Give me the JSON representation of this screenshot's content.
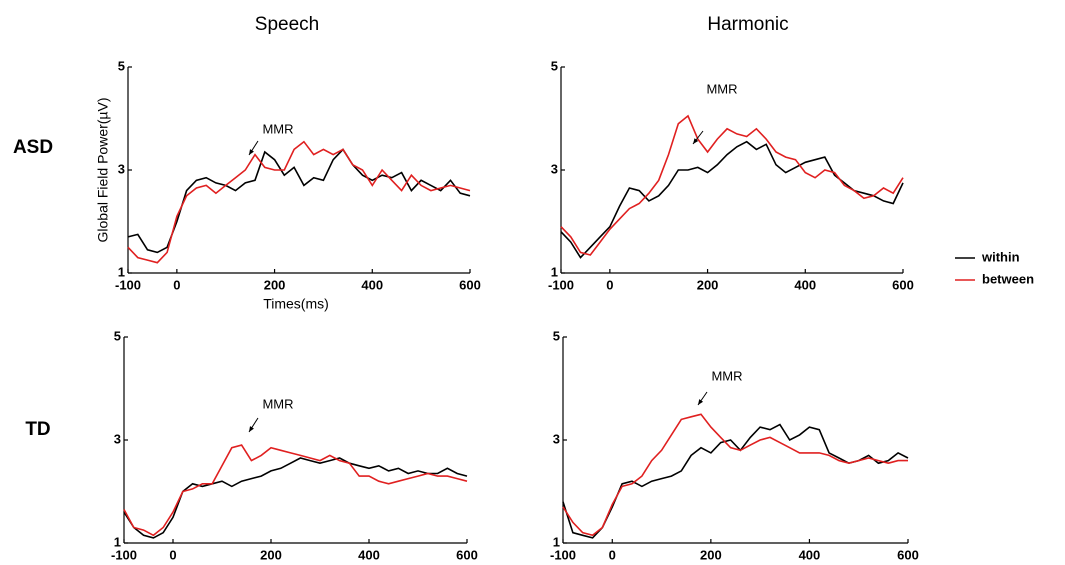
{
  "column_titles": [
    "Speech",
    "Harmonic"
  ],
  "row_labels": [
    "ASD",
    "TD"
  ],
  "chart_data": [
    {
      "type": "line",
      "annotation": "MMR",
      "ylabel": "Global Field Power(µV)",
      "xlabel": "Times(ms)",
      "xlim": [
        -100,
        600
      ],
      "ylim": [
        1,
        5
      ],
      "xticks": [
        -100,
        0,
        200,
        400,
        600
      ],
      "yticks": [
        1,
        3,
        5
      ],
      "x": [
        -100,
        -80,
        -60,
        -40,
        -20,
        0,
        20,
        40,
        60,
        80,
        100,
        120,
        140,
        160,
        180,
        200,
        220,
        240,
        260,
        280,
        300,
        320,
        340,
        360,
        380,
        400,
        420,
        440,
        460,
        480,
        500,
        520,
        540,
        560,
        580,
        600
      ],
      "series": [
        {
          "name": "within",
          "color": "#000000",
          "values": [
            1.7,
            1.75,
            1.45,
            1.4,
            1.5,
            2.0,
            2.6,
            2.8,
            2.85,
            2.75,
            2.7,
            2.6,
            2.75,
            2.8,
            3.35,
            3.2,
            2.9,
            3.05,
            2.7,
            2.85,
            2.8,
            3.2,
            3.4,
            3.1,
            2.9,
            2.8,
            2.9,
            2.85,
            2.95,
            2.6,
            2.8,
            2.7,
            2.6,
            2.8,
            2.55,
            2.5
          ]
        },
        {
          "name": "between",
          "color": "#e02020",
          "values": [
            1.5,
            1.3,
            1.25,
            1.2,
            1.4,
            2.1,
            2.5,
            2.65,
            2.7,
            2.55,
            2.7,
            2.85,
            3.0,
            3.3,
            3.05,
            3.0,
            3.0,
            3.4,
            3.55,
            3.3,
            3.4,
            3.3,
            3.4,
            3.1,
            3.0,
            2.7,
            3.0,
            2.8,
            2.6,
            2.9,
            2.7,
            2.6,
            2.65,
            2.7,
            2.65,
            2.6
          ]
        }
      ]
    },
    {
      "type": "line",
      "annotation": "MMR",
      "xlim": [
        -100,
        600
      ],
      "ylim": [
        1,
        5
      ],
      "xticks": [
        -100,
        0,
        200,
        400,
        600
      ],
      "yticks": [
        1,
        3,
        5
      ],
      "x": [
        -100,
        -80,
        -60,
        -40,
        -20,
        0,
        20,
        40,
        60,
        80,
        100,
        120,
        140,
        160,
        180,
        200,
        220,
        240,
        260,
        280,
        300,
        320,
        340,
        360,
        380,
        400,
        420,
        440,
        460,
        480,
        500,
        520,
        540,
        560,
        580,
        600
      ],
      "series": [
        {
          "name": "within",
          "color": "#000000",
          "values": [
            1.8,
            1.6,
            1.3,
            1.5,
            1.7,
            1.9,
            2.3,
            2.65,
            2.6,
            2.4,
            2.5,
            2.7,
            3.0,
            3.0,
            3.05,
            2.95,
            3.1,
            3.3,
            3.45,
            3.55,
            3.4,
            3.5,
            3.1,
            2.95,
            3.05,
            3.15,
            3.2,
            3.25,
            2.9,
            2.75,
            2.6,
            2.55,
            2.5,
            2.4,
            2.35,
            2.75
          ]
        },
        {
          "name": "between",
          "color": "#e02020",
          "values": [
            1.9,
            1.7,
            1.4,
            1.35,
            1.6,
            1.85,
            2.05,
            2.25,
            2.35,
            2.55,
            2.8,
            3.3,
            3.9,
            4.05,
            3.6,
            3.35,
            3.6,
            3.8,
            3.7,
            3.65,
            3.8,
            3.6,
            3.35,
            3.25,
            3.2,
            2.95,
            2.85,
            3.0,
            2.95,
            2.7,
            2.6,
            2.45,
            2.5,
            2.65,
            2.55,
            2.85
          ]
        }
      ]
    },
    {
      "type": "line",
      "annotation": "MMR",
      "xlim": [
        -100,
        600
      ],
      "ylim": [
        1,
        5
      ],
      "xticks": [
        -100,
        0,
        200,
        400,
        600
      ],
      "yticks": [
        1,
        3,
        5
      ],
      "x": [
        -100,
        -80,
        -60,
        -40,
        -20,
        0,
        20,
        40,
        60,
        80,
        100,
        120,
        140,
        160,
        180,
        200,
        220,
        240,
        260,
        280,
        300,
        320,
        340,
        360,
        380,
        400,
        420,
        440,
        460,
        480,
        500,
        520,
        540,
        560,
        580,
        600
      ],
      "series": [
        {
          "name": "within",
          "color": "#000000",
          "values": [
            1.6,
            1.3,
            1.15,
            1.1,
            1.2,
            1.5,
            2.0,
            2.15,
            2.1,
            2.15,
            2.2,
            2.1,
            2.2,
            2.25,
            2.3,
            2.4,
            2.45,
            2.55,
            2.65,
            2.6,
            2.55,
            2.6,
            2.65,
            2.55,
            2.5,
            2.45,
            2.5,
            2.4,
            2.45,
            2.35,
            2.4,
            2.35,
            2.35,
            2.45,
            2.35,
            2.3
          ]
        },
        {
          "name": "between",
          "color": "#e02020",
          "values": [
            1.65,
            1.3,
            1.25,
            1.15,
            1.3,
            1.6,
            2.0,
            2.05,
            2.15,
            2.15,
            2.5,
            2.85,
            2.9,
            2.6,
            2.7,
            2.85,
            2.8,
            2.75,
            2.7,
            2.65,
            2.6,
            2.7,
            2.6,
            2.55,
            2.3,
            2.3,
            2.2,
            2.15,
            2.2,
            2.25,
            2.3,
            2.35,
            2.3,
            2.3,
            2.25,
            2.2
          ]
        }
      ]
    },
    {
      "type": "line",
      "annotation": "MMR",
      "xlim": [
        -100,
        600
      ],
      "ylim": [
        1,
        5
      ],
      "xticks": [
        -100,
        0,
        200,
        400,
        600
      ],
      "yticks": [
        1,
        3,
        5
      ],
      "x": [
        -100,
        -80,
        -60,
        -40,
        -20,
        0,
        20,
        40,
        60,
        80,
        100,
        120,
        140,
        160,
        180,
        200,
        220,
        240,
        260,
        280,
        300,
        320,
        340,
        360,
        380,
        400,
        420,
        440,
        460,
        480,
        500,
        520,
        540,
        560,
        580,
        600
      ],
      "series": [
        {
          "name": "within",
          "color": "#000000",
          "values": [
            1.8,
            1.2,
            1.15,
            1.1,
            1.3,
            1.7,
            2.15,
            2.2,
            2.1,
            2.2,
            2.25,
            2.3,
            2.4,
            2.7,
            2.85,
            2.75,
            2.95,
            3.0,
            2.8,
            3.05,
            3.25,
            3.2,
            3.3,
            3.0,
            3.1,
            3.25,
            3.2,
            2.75,
            2.65,
            2.55,
            2.6,
            2.7,
            2.55,
            2.6,
            2.75,
            2.65
          ]
        },
        {
          "name": "between",
          "color": "#e02020",
          "values": [
            1.7,
            1.4,
            1.2,
            1.15,
            1.3,
            1.75,
            2.1,
            2.15,
            2.3,
            2.6,
            2.8,
            3.1,
            3.4,
            3.45,
            3.5,
            3.25,
            3.05,
            2.85,
            2.8,
            2.9,
            3.0,
            3.05,
            2.95,
            2.85,
            2.75,
            2.75,
            2.75,
            2.7,
            2.6,
            2.55,
            2.6,
            2.65,
            2.6,
            2.55,
            2.6,
            2.6
          ]
        }
      ]
    }
  ]
}
